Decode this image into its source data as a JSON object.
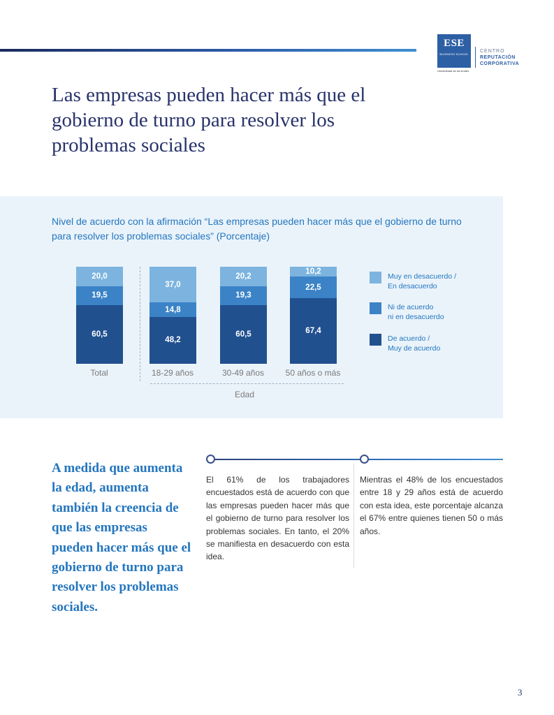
{
  "logo": {
    "name": "ESE",
    "sub": "BUSINESS SCHOOL",
    "university": "Universidad de los Andes",
    "centro": "CENTRO",
    "line1": "REPUTACIÓN",
    "line2": "CORPORATIVA"
  },
  "title": "Las empresas pueden hacer más que el gobierno de turno para resolver los problemas sociales",
  "chart_data": {
    "type": "bar",
    "stacked": true,
    "title": "Nivel de acuerdo con la afirmación “Las empresas pueden hacer más que el gobierno de turno para resolver los problemas sociales” (Porcentaje)",
    "categories": [
      "Total",
      "18-29 años",
      "30-49 años",
      "50 años o más"
    ],
    "group_label": "Edad",
    "series": [
      {
        "name": "De acuerdo / Muy de acuerdo",
        "color": "#21508f",
        "values": [
          60.5,
          48.2,
          60.5,
          67.4
        ],
        "labels": [
          "60,5",
          "48,2",
          "60,5",
          "67,4"
        ]
      },
      {
        "name": "Ni de acuerdo ni en desacuerdo",
        "color": "#3b83c6",
        "values": [
          19.5,
          14.8,
          19.3,
          22.5
        ],
        "labels": [
          "19,5",
          "14,8",
          "19,3",
          "22,5"
        ]
      },
      {
        "name": "Muy en desacuerdo / En desacuerdo",
        "color": "#7cb4df",
        "values": [
          20.0,
          37.0,
          20.2,
          10.2
        ],
        "labels": [
          "20,0",
          "37,0",
          "20,2",
          "10,2"
        ]
      }
    ],
    "legend": [
      {
        "line1": "Muy en desacuerdo /",
        "line2": "En desacuerdo",
        "color": "#7cb4df"
      },
      {
        "line1": "Ni de acuerdo",
        "line2": "ni en desacuerdo",
        "color": "#3b83c6"
      },
      {
        "line1": "De acuerdo /",
        "line2": "Muy de acuerdo",
        "color": "#21508f"
      }
    ],
    "ylim": [
      0,
      100
    ],
    "legend_position": "right"
  },
  "pull_quote": "A medida que aumenta la edad, aumenta también la creencia de que las empresas pueden hacer más que el gobierno de turno para resolver los problemas sociales.",
  "col1": "El 61% de los trabajadores encuestados está de acuerdo con que las empresas pueden hacer más que el gobierno de turno para resolver los problemas sociales. En tanto, el 20% se manifiesta en desacuerdo con esta idea.",
  "col2": "Mientras el 48% de los encuestados entre 18 y 29 años está de acuerdo con esta idea, este porcentaje alcanza el 67% entre quienes tienen 50 o más años.",
  "page_number": "3"
}
